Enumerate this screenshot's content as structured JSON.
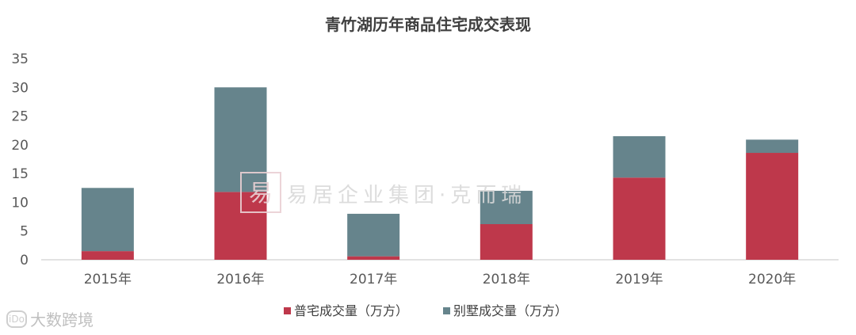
{
  "chart_data": {
    "type": "bar",
    "stacked": true,
    "title": "青竹湖历年商品住宅成交表现",
    "categories": [
      "2015年",
      "2016年",
      "2017年",
      "2018年",
      "2019年",
      "2020年"
    ],
    "series": [
      {
        "name": "普宅成交量（万方）",
        "color": "#be384b",
        "values": [
          1.5,
          11.8,
          0.6,
          6.2,
          14.3,
          18.6
        ]
      },
      {
        "name": "别墅成交量（万方）",
        "color": "#66848c",
        "values": [
          11.0,
          18.2,
          7.4,
          5.8,
          7.2,
          2.3
        ]
      }
    ],
    "ylim": [
      0,
      35
    ],
    "yticks": [
      0,
      5,
      10,
      15,
      20,
      25,
      30,
      35
    ],
    "grid": false,
    "legend": "bottom"
  },
  "watermark": {
    "logo_char": "易",
    "text": "易居企业集团·克而瑞"
  },
  "corner_watermark": {
    "logo": "iDo",
    "text": "大数跨境"
  }
}
